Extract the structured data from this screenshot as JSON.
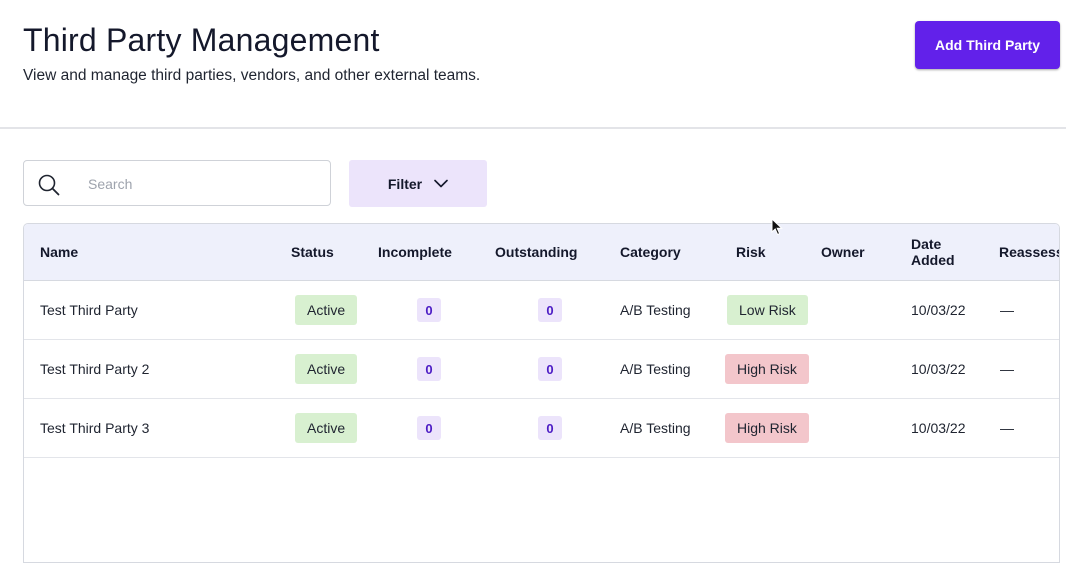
{
  "header": {
    "title": "Third Party Management",
    "subtitle": "View and manage third parties, vendors, and other external teams.",
    "add_button_label": "Add Third Party"
  },
  "toolbar": {
    "search_placeholder": "Search",
    "search_value": "",
    "filter_label": "Filter"
  },
  "table": {
    "columns": [
      "Name",
      "Status",
      "Incomplete",
      "Outstanding",
      "Category",
      "Risk",
      "Owner",
      "Date Added",
      "Reassessm"
    ],
    "rows": [
      {
        "name": "Test Third Party",
        "status": "Active",
        "incomplete": "0",
        "outstanding": "0",
        "category": "A/B Testing",
        "risk": "Low Risk",
        "owner": "",
        "date_added": "10/03/22",
        "reassessment": "—"
      },
      {
        "name": "Test Third Party 2",
        "status": "Active",
        "incomplete": "0",
        "outstanding": "0",
        "category": "A/B Testing",
        "risk": "High Risk",
        "owner": "",
        "date_added": "10/03/22",
        "reassessment": "—"
      },
      {
        "name": "Test Third Party 3",
        "status": "Active",
        "incomplete": "0",
        "outstanding": "0",
        "category": "A/B Testing",
        "risk": "High Risk",
        "owner": "",
        "date_added": "10/03/22",
        "reassessment": "—"
      }
    ]
  },
  "colors": {
    "accent": "#6221ea",
    "filter_bg": "#ece4fb",
    "status_active": "#d8f0d0",
    "risk_low": "#d8f0d0",
    "risk_high": "#f3c6cb",
    "table_header_bg": "#eef0fb"
  },
  "icons": {
    "search": "search-icon",
    "filter_chevron": "chevron-down-icon",
    "cursor": "mouse-pointer-icon"
  }
}
